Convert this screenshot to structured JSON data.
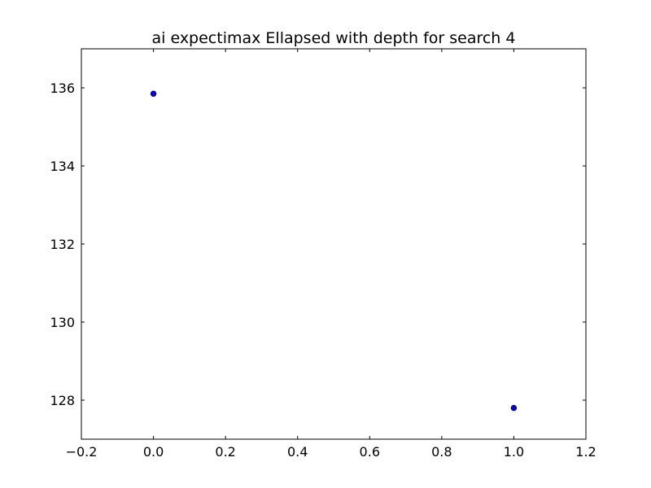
{
  "chart_data": {
    "type": "scatter",
    "title": "ai expectimax Ellapsed with depth for search 4",
    "xlabel": "",
    "ylabel": "",
    "xlim": [
      -0.2,
      1.2
    ],
    "ylim": [
      127,
      137
    ],
    "xticks": [
      -0.2,
      0.0,
      0.2,
      0.4,
      0.6,
      0.8,
      1.0,
      1.2
    ],
    "xtick_labels": [
      "−0.2",
      "0.0",
      "0.2",
      "0.4",
      "0.6",
      "0.8",
      "1.0",
      "1.2"
    ],
    "yticks": [
      128,
      130,
      132,
      134,
      136
    ],
    "ytick_labels": [
      "128",
      "130",
      "132",
      "134",
      "136"
    ],
    "grid": false,
    "series": [
      {
        "color": "#0000ff",
        "x": [
          0,
          1
        ],
        "y": [
          135.85,
          127.8
        ]
      }
    ]
  }
}
